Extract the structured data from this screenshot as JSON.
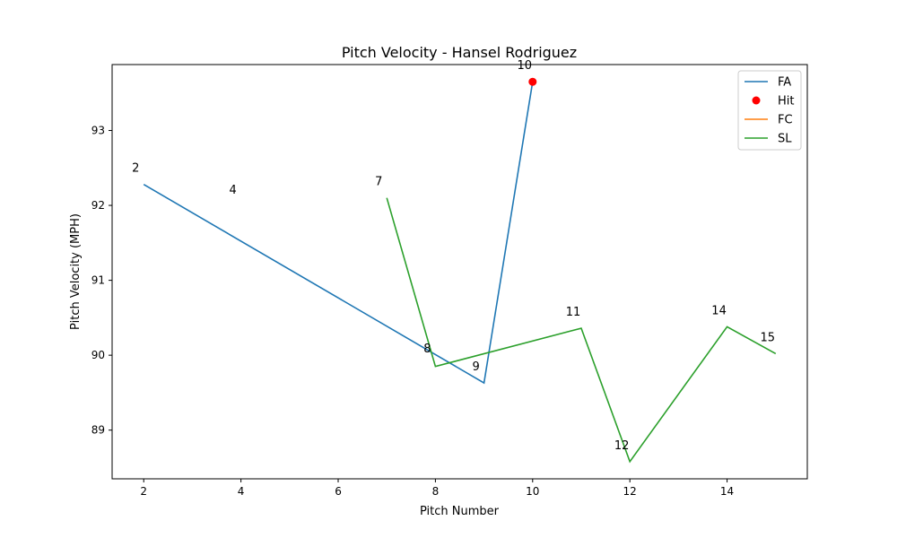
{
  "chart_data": {
    "type": "line",
    "title": "Pitch Velocity - Hansel Rodriguez",
    "xlabel": "Pitch Number",
    "ylabel": "Pitch Velocity (MPH)",
    "xlim": [
      1.35,
      15.65
    ],
    "ylim": [
      88.35,
      93.88
    ],
    "xticks": [
      2,
      4,
      6,
      8,
      10,
      12,
      14
    ],
    "yticks": [
      89,
      90,
      91,
      92,
      93
    ],
    "grid": false,
    "legend_position": "top-right",
    "series": [
      {
        "name": "FA",
        "kind": "line",
        "color": "#1f77b4",
        "points": [
          {
            "x": 2,
            "y": 92.28
          },
          {
            "x": 9,
            "y": 89.63
          },
          {
            "x": 10,
            "y": 93.65
          }
        ]
      },
      {
        "name": "Hit",
        "kind": "scatter",
        "color": "#ff0000",
        "points": [
          {
            "x": 10,
            "y": 93.65
          }
        ]
      },
      {
        "name": "FC",
        "kind": "line",
        "color": "#ff7f0e",
        "points": []
      },
      {
        "name": "SL",
        "kind": "line",
        "color": "#2ca02c",
        "points": [
          {
            "x": 7,
            "y": 92.1
          },
          {
            "x": 8,
            "y": 89.85
          },
          {
            "x": 11,
            "y": 90.36
          },
          {
            "x": 12,
            "y": 88.58
          },
          {
            "x": 14,
            "y": 90.38
          },
          {
            "x": 15,
            "y": 90.02
          }
        ]
      }
    ],
    "annotations": [
      {
        "text": "2",
        "x": 2,
        "y": 92.28
      },
      {
        "text": "4",
        "x": 4,
        "y": 91.99
      },
      {
        "text": "7",
        "x": 7,
        "y": 92.1
      },
      {
        "text": "8",
        "x": 8,
        "y": 89.87
      },
      {
        "text": "9",
        "x": 9,
        "y": 89.63
      },
      {
        "text": "10",
        "x": 10,
        "y": 93.65
      },
      {
        "text": "11",
        "x": 11,
        "y": 90.36
      },
      {
        "text": "12",
        "x": 12,
        "y": 88.58
      },
      {
        "text": "14",
        "x": 14,
        "y": 90.38
      },
      {
        "text": "15",
        "x": 15,
        "y": 90.02
      }
    ]
  }
}
